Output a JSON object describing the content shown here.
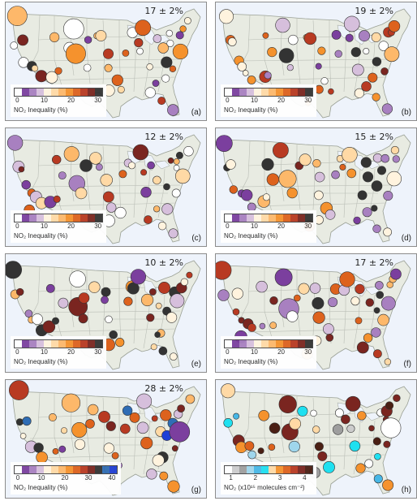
{
  "colors": {
    "land": "#e8ebe2",
    "water": "#eef3fb",
    "borders": "#b9bdb5"
  },
  "scales": {
    "standard": {
      "colors": [
        "#ffffff",
        "#7b3f9e",
        "#a880c0",
        "#d6bfdc",
        "#fff3de",
        "#ffd9a5",
        "#fdb86a",
        "#f5922d",
        "#dd621d",
        "#b83a22",
        "#7a2520",
        "#333333"
      ],
      "ticks": [
        "0",
        "10",
        "20",
        "30"
      ]
    },
    "extended": {
      "colors": [
        "#ffffff",
        "#7b3f9e",
        "#a880c0",
        "#d6bfdc",
        "#fff3de",
        "#ffd9a5",
        "#fdb86a",
        "#f5922d",
        "#dd621d",
        "#b83a22",
        "#7a2520",
        "#333333",
        "#2f6db5",
        "#1f3fd6"
      ],
      "ticks": [
        "0",
        "10",
        "20",
        "30",
        "40"
      ]
    },
    "concentration": {
      "colors": [
        "#ffffff",
        "#cccccc",
        "#9e9e9e",
        "#9fd6ec",
        "#47b7e6",
        "#1fe0f0",
        "#ffd9a5",
        "#f5922d",
        "#dd621d",
        "#b83a22",
        "#7a2520",
        "#4a1f14"
      ],
      "ticks": [
        "1",
        "2",
        "3",
        "4"
      ]
    }
  },
  "legend_titles": {
    "inequality": "NO₂ Inequality (%)",
    "concentration": "NO₂ (x10¹⁵ molecules cm⁻²)"
  },
  "panels": [
    {
      "label": "(a)",
      "value": "17 ± 2%",
      "scale": "standard",
      "title_key": "inequality"
    },
    {
      "label": "(b)",
      "value": "19 ± 2%",
      "scale": "standard",
      "title_key": "inequality"
    },
    {
      "label": "(c)",
      "value": "12 ± 2%",
      "scale": "standard",
      "title_key": "inequality"
    },
    {
      "label": "(d)",
      "value": "15 ± 2%",
      "scale": "standard",
      "title_key": "inequality"
    },
    {
      "label": "(e)",
      "value": "10 ± 2%",
      "scale": "standard",
      "title_key": "inequality"
    },
    {
      "label": "(f)",
      "value": "17 ± 2%",
      "scale": "standard",
      "title_key": "inequality"
    },
    {
      "label": "(g)",
      "value": "28 ± 2%",
      "scale": "extended",
      "title_key": "inequality"
    },
    {
      "label": "(h)",
      "value": "",
      "scale": "concentration",
      "title_key": "concentration"
    }
  ]
}
